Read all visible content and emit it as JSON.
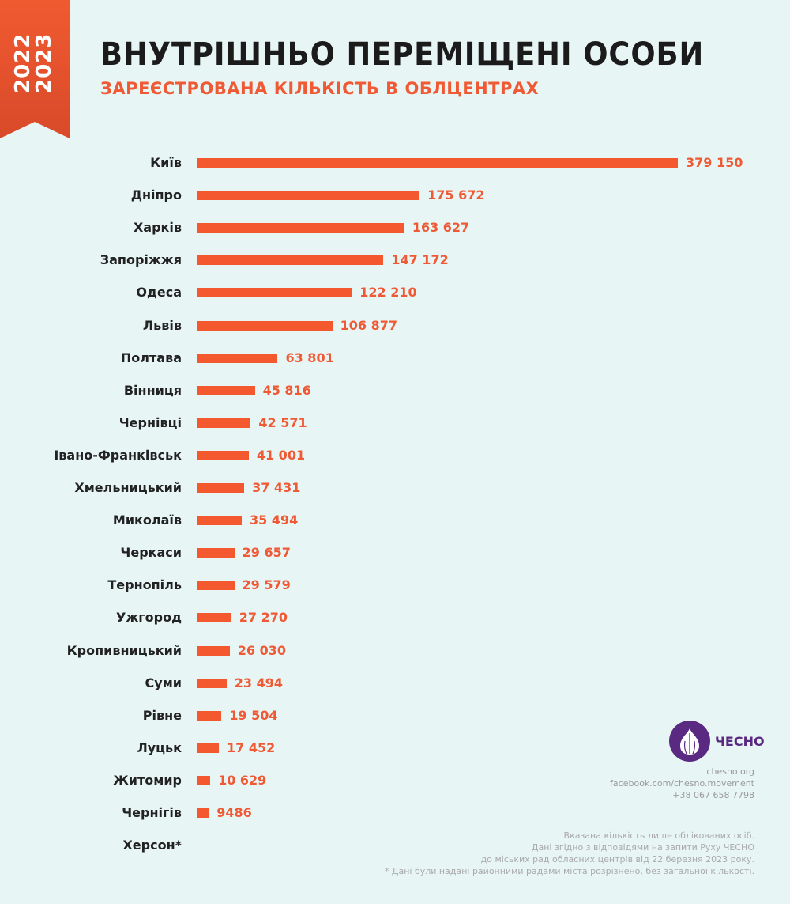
{
  "ribbon": {
    "years": [
      "2022",
      "2023"
    ]
  },
  "header": {
    "title": "ВНУТРІШНЬО ПЕРЕМІЩЕНІ ОСОБИ",
    "subtitle": "ЗАРЕЄСТРОВАНА КІЛЬКІСТЬ В ОБЛЦЕНТРАХ"
  },
  "chart_data": {
    "type": "bar",
    "orientation": "horizontal",
    "title": "ВНУТРІШНЬО ПЕРЕМІЩЕНІ ОСОБИ",
    "subtitle": "ЗАРЕЄСТРОВАНА КІЛЬКІСТЬ В ОБЛЦЕНТРАХ",
    "categories": [
      "Київ",
      "Дніпро",
      "Харків",
      "Запоріжжя",
      "Одеса",
      "Львів",
      "Полтава",
      "Вінниця",
      "Чернівці",
      "Івано-Франківськ",
      "Хмельницький",
      "Миколаїв",
      "Черкаси",
      "Тернопіль",
      "Ужгород",
      "Кропивницький",
      "Суми",
      "Рівне",
      "Луцьк",
      "Житомир",
      "Чернігів",
      "Херсон*"
    ],
    "values": [
      379150,
      175672,
      163627,
      147172,
      122210,
      106877,
      63801,
      45816,
      42571,
      41001,
      37431,
      35494,
      29657,
      29579,
      27270,
      26030,
      23494,
      19504,
      17452,
      10629,
      9486,
      null
    ],
    "value_labels": [
      "379 150",
      "175 672",
      "163 627",
      "147 172",
      "122 210",
      "106 877",
      "63 801",
      "45 816",
      "42 571",
      "41 001",
      "37 431",
      "35 494",
      "29 657",
      "29 579",
      "27 270",
      "26 030",
      "23 494",
      "19 504",
      "17 452",
      "10 629",
      "9486",
      ""
    ],
    "bar_color": "#f4582f",
    "value_color": "#ef5a35",
    "grid": false
  },
  "logo": {
    "text": "ЧЕСНО",
    "color": "#5a2a82"
  },
  "contacts": [
    "chesno.org",
    "facebook.com/chesno.movement",
    "+38 067 658 7798"
  ],
  "notes": [
    "Вказана кількість лише облікованих осіб.",
    "Дані згідно з відповідями на запити Руху ЧЕСНО",
    "до міських рад обласних центрів від 22 березня 2023 року.",
    "* Дані були надані районними радами міста розрізнено, без загальної кількості."
  ]
}
